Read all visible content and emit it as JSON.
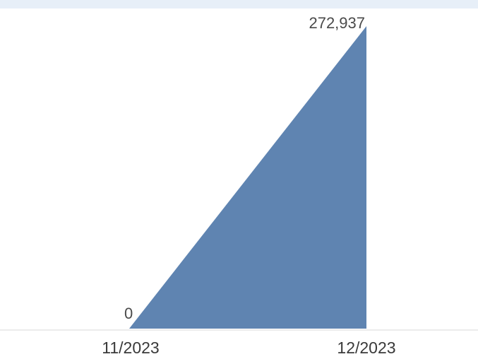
{
  "chart_data": {
    "type": "area",
    "categories": [
      "11/2023",
      "12/2023"
    ],
    "series": [
      {
        "values": [
          0,
          272937
        ],
        "value_labels": [
          "0",
          "272,937"
        ]
      }
    ],
    "title": "",
    "xlabel": "",
    "ylabel": "",
    "ylim": [
      0,
      272937
    ],
    "grid": false,
    "legend": "none",
    "colors": {
      "area_fill": "#5f84b1",
      "baseline": "#d8d8d8",
      "top_strip": "#e7eff8"
    }
  }
}
